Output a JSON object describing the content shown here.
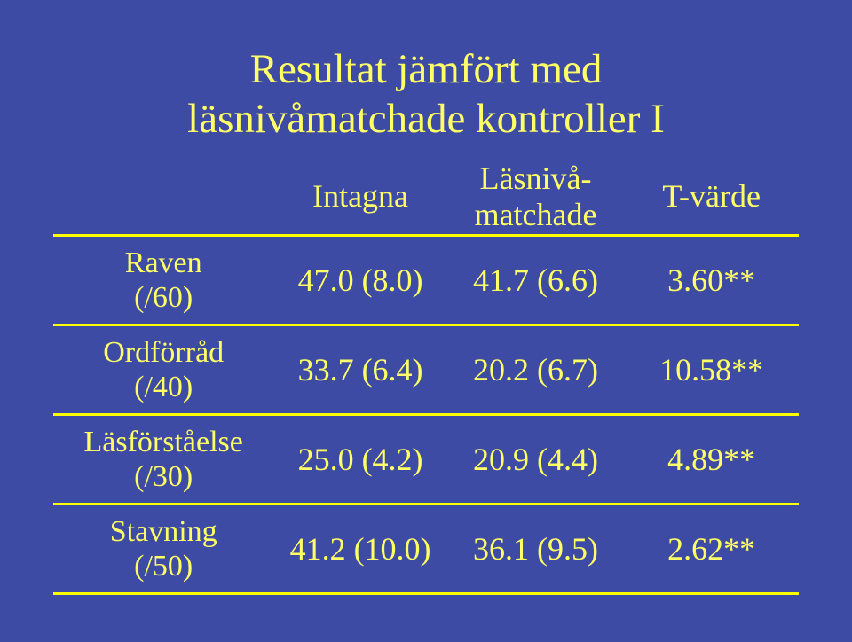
{
  "colors": {
    "background": "#3d4ba4",
    "text": "#ffff66",
    "rule": "#ffff00"
  },
  "title": {
    "line1": "Resultat jämfört med",
    "line2": "läsnivåmatchade kontroller I"
  },
  "header": {
    "col1": {
      "top": "Intagna",
      "sub": ""
    },
    "col2": {
      "top": "Läsnivå-",
      "sub": "matchade"
    },
    "col3": {
      "top": "T-värde",
      "sub": ""
    }
  },
  "rows": [
    {
      "label_main": "Raven",
      "label_sub": "(/60)",
      "intagna": "47.0 (8.0)",
      "lasniva": "41.7 (6.6)",
      "tvarde": "3.60**"
    },
    {
      "label_main": "Ordförråd",
      "label_sub": "(/40)",
      "intagna": "33.7 (6.4)",
      "lasniva": "20.2 (6.7)",
      "tvarde": "10.58**"
    },
    {
      "label_main": "Läsförståelse",
      "label_sub": "(/30)",
      "intagna": "25.0 (4.2)",
      "lasniva": "20.9 (4.4)",
      "tvarde": "4.89**"
    },
    {
      "label_main": "Stavning",
      "label_sub": "(/50)",
      "intagna": "41.2 (10.0)",
      "lasniva": "36.1 (9.5)",
      "tvarde": "2.62**"
    }
  ]
}
